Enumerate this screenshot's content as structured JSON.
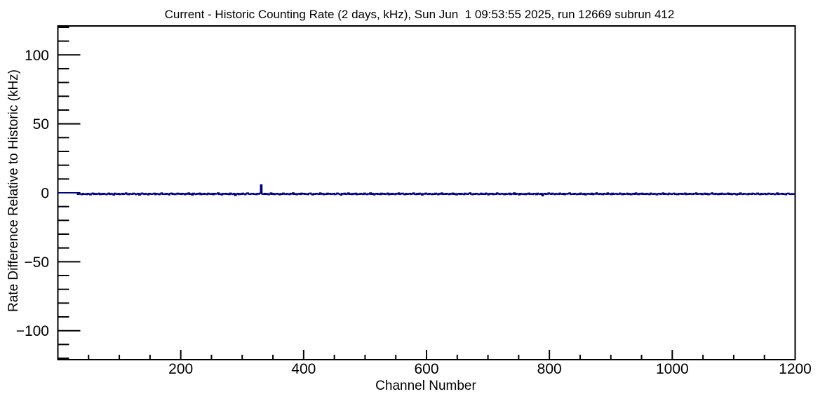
{
  "window": {
    "background": "#ffffff"
  },
  "chart_data": {
    "type": "line",
    "style": "step-histogram",
    "title": "Current - Historic Counting Rate (2 days, kHz), Sun Jun  1 09:53:55 2025, run 12669 subrun 412",
    "xlabel": "Channel Number",
    "ylabel": "Rate Difference Relative to Historic (kHz)",
    "xlim": [
      0,
      1200
    ],
    "ylim": [
      -121,
      121
    ],
    "grid": false,
    "legend": false,
    "frame_color": "#000000",
    "line_color": "#00008b",
    "x_major_ticks": [
      200,
      400,
      600,
      800,
      1000,
      1200
    ],
    "x_tick_labels": [
      "200",
      "400",
      "600",
      "800",
      "1000",
      "1200"
    ],
    "x_minor_step": 50,
    "y_major_ticks": [
      100,
      50,
      0,
      -50,
      -100
    ],
    "y_tick_labels": [
      "100",
      "50",
      "0",
      "−50",
      "−100"
    ],
    "y_minor_step": 10,
    "y_minor_range": [
      -120,
      120
    ],
    "series_description": "Per-channel rate difference (current minus historic). Channels 0-30 are exactly 0; remaining channels show noise around -0.8 kHz; single positive spike of ~+5.6 kHz near channel 330.",
    "x_start": 0,
    "x_step": 2,
    "values": [
      0,
      0,
      0,
      0,
      0,
      0,
      0,
      0,
      0,
      0,
      0,
      0,
      0,
      0,
      0,
      0,
      -1.1,
      -0.7,
      -0.9,
      -1.3,
      -0.6,
      -1.0,
      -0.8,
      -1.2,
      -0.5,
      -0.9,
      -1.4,
      -0.7,
      -0.3,
      -1.0,
      -0.6,
      -1.1,
      -0.8,
      -0.4,
      -1.2,
      -0.7,
      -1.0,
      -0.5,
      -0.9,
      -1.3,
      -0.8,
      -0.3,
      -1.1,
      -0.6,
      -0.9,
      -1.5,
      -0.4,
      -0.8,
      -1.0,
      -0.6,
      -1.2,
      -0.9,
      -0.5,
      -1.1,
      -0.7,
      -0.2,
      -0.9,
      -1.3,
      -0.6,
      -0.8,
      -1.0,
      -0.4,
      -0.7,
      -1.2,
      -0.8,
      -0.5,
      -1.6,
      -0.9,
      -0.3,
      -0.7,
      -1.1,
      -0.6,
      -0.9,
      -1.4,
      -0.5,
      -0.8,
      -1.0,
      -0.7,
      -0.4,
      -1.2,
      -0.6,
      -0.9,
      -1.3,
      -0.7,
      -0.2,
      -1.0,
      -0.8,
      -1.1,
      -0.5,
      -0.9,
      -1.4,
      -0.6,
      -0.3,
      -1.0,
      -0.7,
      -1.2,
      -0.8,
      -0.4,
      -0.9,
      -0.6,
      -1.1,
      -0.5,
      -0.8,
      -1.3,
      -0.6,
      -0.9,
      -0.2,
      -1.0,
      -0.7,
      -1.5,
      -0.4,
      -0.8,
      -1.1,
      -0.6,
      -0.9,
      -0.3,
      -1.2,
      -0.7,
      -1.0,
      -0.5,
      -0.9,
      -1.2,
      -0.4,
      -0.8,
      -1.0,
      -0.6,
      -1.3,
      -0.5,
      -0.9,
      -0.7,
      -0.1,
      -1.1,
      -0.8,
      -1.4,
      -0.6,
      -0.9,
      -0.5,
      -1.0,
      -0.7,
      -1.2,
      -0.3,
      -0.8,
      -1.1,
      -0.6,
      -1.9,
      -0.9,
      -0.5,
      -1.2,
      -0.7,
      -1.0,
      -0.4,
      -0.8,
      -1.3,
      -0.6,
      -0.2,
      -0.9,
      -1.1,
      -0.7,
      -0.5,
      -1.0,
      -0.8,
      -1.2,
      -0.6,
      -0.9,
      -0.4,
      5.6,
      -0.8,
      -1.1,
      -0.5,
      -1.0,
      -0.7,
      -1.3,
      -0.9,
      -0.2,
      -1.0,
      -0.6,
      -1.2,
      -0.8,
      -0.5,
      -0.9,
      -1.4,
      -0.7,
      -1.0,
      -0.3,
      -0.8,
      -1.1,
      -0.6,
      -0.9,
      -1.2,
      -0.5,
      -0.8,
      -0.1,
      -1.0,
      -0.7,
      -1.3,
      -0.9,
      -0.6,
      -1.1,
      -0.4,
      -0.8,
      -0.5,
      -1.0,
      -0.8,
      -1.2,
      -0.6,
      -0.3,
      -0.9,
      -1.4,
      -0.7,
      -1.0,
      -0.5,
      -0.8,
      -1.1,
      -0.2,
      -0.9,
      -0.6,
      -1.3,
      -0.8,
      -1.0,
      -0.4,
      -0.9,
      -0.6,
      -1.1,
      -0.8,
      -0.5,
      -1.2,
      -0.9,
      -0.3,
      -0.7,
      -1.0,
      -1.6,
      -0.6,
      -0.9,
      -0.4,
      -1.1,
      -0.8,
      -0.2,
      -1.0,
      -0.7,
      -1.2,
      -0.6,
      -0.9,
      -0.4,
      -1.3,
      -0.8,
      -1.0,
      -0.5,
      -0.9,
      -1.1,
      -0.3,
      -0.8,
      -1.2,
      -0.7,
      -0.9,
      -0.1,
      -1.0,
      -0.6,
      -1.4,
      -0.8,
      -0.5,
      -1.0,
      -0.7,
      -1.2,
      -0.4,
      -0.9,
      -0.6,
      -1.1,
      -0.8,
      -0.3,
      -1.3,
      -0.7,
      -1.0,
      -0.5,
      -0.9,
      -1.2,
      -0.6,
      -0.8,
      -0.2,
      -1.1,
      -0.7,
      -0.4,
      -0.9,
      -1.3,
      -0.6,
      -1.0,
      -0.8,
      -0.5,
      -1.1,
      -0.7,
      -0.2,
      -0.9,
      -1.2,
      -0.6,
      -1.0,
      -0.4,
      -0.8,
      -1.5,
      -0.7,
      -0.9,
      -0.3,
      -0.8,
      -1.1,
      -0.5,
      -0.9,
      -1.2,
      -0.7,
      -1.0,
      -0.4,
      -0.8,
      -1.3,
      -0.6,
      -0.9,
      -0.2,
      -1.1,
      -0.7,
      -1.0,
      -0.5,
      -0.8,
      -1.2,
      -0.6,
      -0.9,
      -0.3,
      -1.0,
      -0.7,
      -1.4,
      -0.8,
      -0.5,
      -1.1,
      -0.6,
      -0.9,
      -1.2,
      -0.4,
      -0.8,
      -1.0,
      -0.6,
      -0.1,
      -0.9,
      -1.3,
      -0.7,
      -1.0,
      -0.5,
      -0.8,
      -1.2,
      -0.9,
      -0.4,
      -1.0,
      -0.7,
      -1.1,
      -0.3,
      -0.8,
      -1.4,
      -0.6,
      -0.9,
      -0.5,
      -1.2,
      -0.8,
      -1.0,
      -0.2,
      -0.7,
      -1.1,
      -0.8,
      -0.5,
      -0.9,
      -1.3,
      -0.6,
      -1.0,
      -0.8,
      -0.4,
      -1.2,
      -0.7,
      -0.9,
      -0.1,
      -1.1,
      -0.6,
      -0.8,
      -1.4,
      -0.5,
      -0.9,
      -1.0,
      -0.7,
      -1.2,
      -0.6,
      -0.9,
      -0.3,
      -1.0,
      -0.8,
      -1.1,
      -0.5,
      -0.7,
      -1.3,
      -0.4,
      -0.9,
      -1.0,
      -0.6,
      -2.1,
      -0.8,
      -0.5,
      -1.1,
      -0.9,
      -0.2,
      -0.7,
      -1.0,
      -0.4,
      -0.8,
      -1.2,
      -0.6,
      -0.9,
      -1.1,
      -0.3,
      -0.8,
      -1.0,
      -0.5,
      -1.3,
      -0.7,
      -0.9,
      -0.6,
      -0.2,
      -1.1,
      -0.8,
      -1.0,
      -0.5,
      -0.9,
      -1.2,
      -0.7,
      -1.0,
      -0.3,
      -0.8,
      -1.1,
      -0.6,
      -1.4,
      -0.9,
      -0.5,
      -0.8,
      -1.0,
      -0.4,
      -1.2,
      -0.7,
      -0.9,
      -0.1,
      -0.8,
      -1.1,
      -0.6,
      -0.9,
      -1.3,
      -0.5,
      -0.8,
      -1.0,
      -0.2,
      -0.9,
      -0.7,
      -1.2,
      -0.4,
      -1.0,
      -0.8,
      -0.6,
      -1.1,
      -0.9,
      -0.3,
      -0.8,
      -1.3,
      -0.6,
      -1.0,
      -0.8,
      -0.4,
      -1.1,
      -0.7,
      -1.3,
      -0.9,
      -0.5,
      -1.0,
      -0.2,
      -0.8,
      -1.2,
      -0.6,
      -0.9,
      -0.4,
      -1.0,
      -0.7,
      -1.1,
      -0.5,
      -0.9,
      -1.2,
      -0.3,
      -0.8,
      -1.0,
      -0.6,
      -0.9,
      -1.4,
      -0.7,
      -0.5,
      -1.1,
      -0.8,
      -0.2,
      -1.0,
      -0.6,
      -0.9,
      -1.2,
      -0.4,
      -0.8,
      -1.0,
      -0.7,
      -0.4,
      -1.1,
      -0.8,
      -1.3,
      -0.6,
      -0.9,
      -0.5,
      -1.0,
      -0.8,
      -0.3,
      -1.2,
      -0.7,
      -1.0,
      -0.5,
      -0.9,
      -1.1,
      -0.6,
      -0.8,
      -0.2,
      -1.0,
      -0.7,
      -0.9,
      -0.5,
      -1.2,
      -0.8,
      -0.4,
      -1.0,
      -0.6,
      -1.3,
      -0.9,
      -0.7,
      -0.1,
      -0.8,
      -1.1,
      -0.5,
      -0.9,
      -1.2,
      -0.6,
      -1.0,
      -0.4,
      -0.8,
      -1.1,
      -0.7,
      -0.9,
      -0.3,
      -1.0,
      -0.6,
      -1.2,
      -0.8,
      -0.5,
      -0.9,
      -1.4,
      -0.7,
      -1.0,
      -0.2,
      -0.8,
      -1.1,
      -0.6,
      -0.9,
      -0.8,
      -1.2,
      -0.5,
      -0.9,
      -1.0,
      -0.4,
      -0.7,
      -1.1,
      -0.8,
      -0.3,
      -0.9,
      -1.3,
      -0.6,
      -1.0,
      -0.8,
      -0.5,
      -1.2,
      -0.9,
      -0.4,
      -0.7,
      -1.0,
      -0.6,
      -0.9,
      -1.2,
      -0.8,
      -0.2,
      -1.1,
      -0.7,
      -0.9,
      -0.5,
      -1.0,
      -0.8,
      -1.3,
      -0.6,
      -0.4,
      -0.9,
      -1.1,
      -0.7,
      -1.0,
      -0.8
    ]
  }
}
